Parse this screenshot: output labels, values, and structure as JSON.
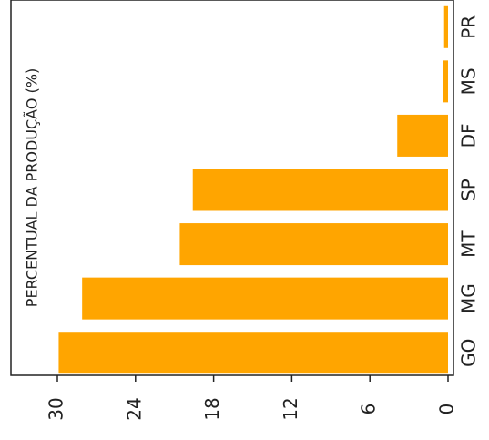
{
  "chart_data": {
    "type": "bar",
    "orientation": "horizontal",
    "y_label": "PERCENTUAL DA PRODUÇÃO (%)",
    "categories": [
      "GO",
      "MG",
      "MT",
      "SP",
      "DF",
      "MS",
      "PR"
    ],
    "values": [
      29.9,
      28.1,
      20.6,
      19.6,
      3.9,
      0.4,
      0.3
    ],
    "color": "#ffa500",
    "ylim": [
      0,
      30
    ],
    "yticks": [
      0,
      6,
      12,
      18,
      24,
      30
    ]
  }
}
